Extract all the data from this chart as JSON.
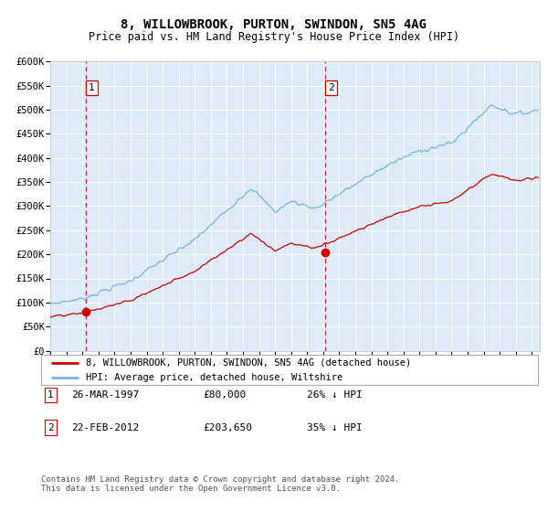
{
  "title": "8, WILLOWBROOK, PURTON, SWINDON, SN5 4AG",
  "subtitle": "Price paid vs. HM Land Registry's House Price Index (HPI)",
  "hpi_color": "#7ab4d8",
  "price_color": "#cc0000",
  "bg_color": "#ddeaf7",
  "grid_color": "#ffffff",
  "sale1_date_num": 1997.23,
  "sale1_price": 80000,
  "sale2_date_num": 2012.14,
  "sale2_price": 203650,
  "legend_line1": "8, WILLOWBROOK, PURTON, SWINDON, SN5 4AG (detached house)",
  "legend_line2": "HPI: Average price, detached house, Wiltshire",
  "table_row1": [
    "1",
    "26-MAR-1997",
    "£80,000",
    "26% ↓ HPI"
  ],
  "table_row2": [
    "2",
    "22-FEB-2012",
    "£203,650",
    "35% ↓ HPI"
  ],
  "footer": "Contains HM Land Registry data © Crown copyright and database right 2024.\nThis data is licensed under the Open Government Licence v3.0.",
  "ylim": [
    0,
    600000
  ],
  "yticks": [
    0,
    50000,
    100000,
    150000,
    200000,
    250000,
    300000,
    350000,
    400000,
    450000,
    500000,
    550000,
    600000
  ],
  "xmin": 1995.0,
  "xmax": 2025.5
}
